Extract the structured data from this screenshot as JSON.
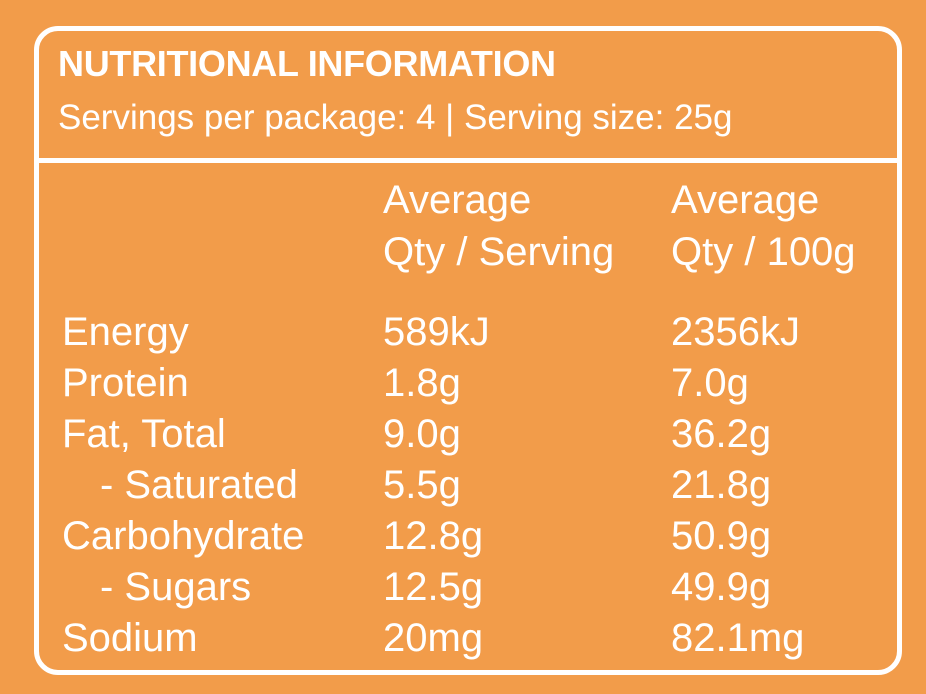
{
  "panel": {
    "title": "NUTRITIONAL INFORMATION",
    "subtitle": "Servings per package: 4 | Serving size: 25g"
  },
  "columns": {
    "per_serving": [
      "Average",
      "Qty / Serving"
    ],
    "per_100g": [
      "Average",
      "Qty / 100g"
    ]
  },
  "rows": [
    {
      "name": "Energy",
      "per_serving": "589kJ",
      "per_100g": "2356kJ"
    },
    {
      "name": "Protein",
      "per_serving": "1.8g",
      "per_100g": "7.0g"
    },
    {
      "name": "Fat, Total",
      "per_serving": "9.0g",
      "per_100g": "36.2g"
    },
    {
      "name": "- Saturated",
      "per_serving": "5.5g",
      "per_100g": "21.8g"
    },
    {
      "name": "Carbohydrate",
      "per_serving": "12.8g",
      "per_100g": "50.9g"
    },
    {
      "name": "- Sugars",
      "per_serving": "12.5g",
      "per_100g": "49.9g"
    },
    {
      "name": "Sodium",
      "per_serving": "20mg",
      "per_100g": "82.1mg"
    }
  ],
  "colors": {
    "background": "#F29C4A",
    "foreground": "#FFFFFF"
  }
}
